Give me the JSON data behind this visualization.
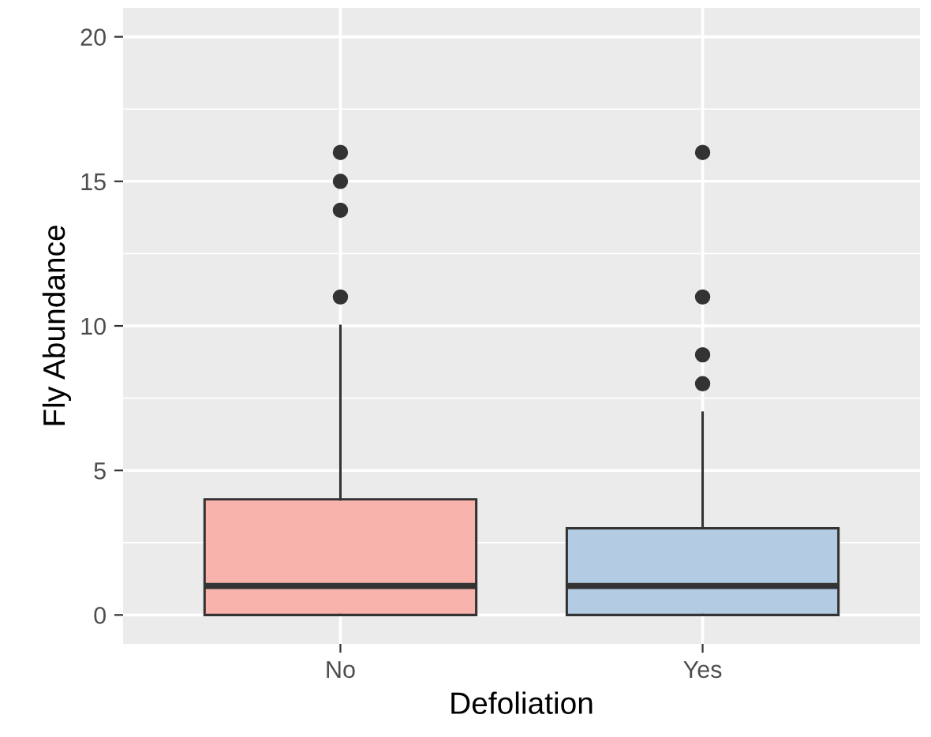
{
  "chart_data": {
    "type": "box",
    "xlabel": "Defoliation",
    "ylabel": "Fly Abundance",
    "categories": [
      "No",
      "Yes"
    ],
    "colors": [
      "#f8b3ad",
      "#b4cce3"
    ],
    "boxes": [
      {
        "low": 0,
        "q1": 0,
        "median": 1,
        "q3": 4,
        "high": 10,
        "outliers": [
          11,
          14,
          15,
          16
        ]
      },
      {
        "low": 0,
        "q1": 0,
        "median": 1,
        "q3": 3,
        "high": 7,
        "outliers": [
          8,
          9,
          11,
          16
        ]
      }
    ],
    "ylim": [
      -1,
      21
    ],
    "yticks": [
      0,
      5,
      10,
      15,
      20
    ],
    "grid": true
  }
}
